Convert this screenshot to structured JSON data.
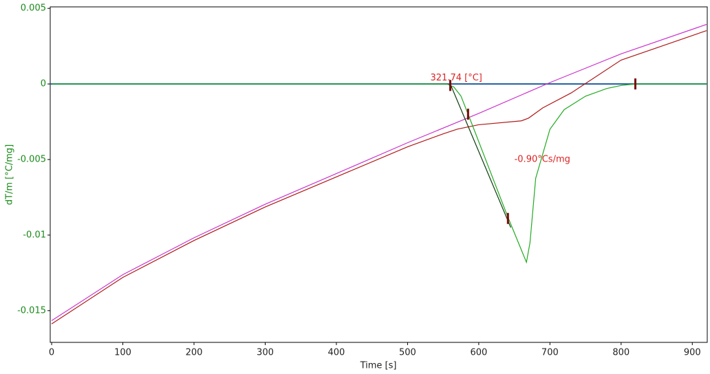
{
  "chart_data": {
    "type": "line",
    "xlabel": "Time [s]",
    "ylabel": "dT/m  [°C/mg]",
    "xlim": [
      -2,
      921
    ],
    "ylim": [
      -0.0171,
      0.0051
    ],
    "xticks": [
      0,
      100,
      200,
      300,
      400,
      500,
      600,
      700,
      800,
      900
    ],
    "yticks": [
      0.005,
      0,
      -0.005,
      -0.01,
      -0.015
    ],
    "series": [
      {
        "color": "#1f5fa0",
        "x": [
          -2,
          921
        ],
        "values": [
          0,
          0
        ]
      },
      {
        "color": "#cc33cc",
        "x": [
          0,
          100,
          200,
          300,
          400,
          500,
          600,
          700,
          800,
          920
        ],
        "values": [
          -0.01566,
          -0.01262,
          -0.01018,
          -0.00796,
          -0.00593,
          -0.00389,
          -0.00195,
          9e-05,
          0.00199,
          0.00394
        ]
      },
      {
        "color": "#b01818",
        "x": [
          0,
          100,
          200,
          300,
          400,
          500,
          550,
          570,
          600,
          660,
          670,
          690,
          730,
          800,
          920
        ],
        "values": [
          -0.01588,
          -0.0128,
          -0.01036,
          -0.00814,
          -0.00615,
          -0.00416,
          -0.0033,
          -0.00299,
          -0.0027,
          -0.00244,
          -0.00226,
          -0.00158,
          -0.00059,
          0.00158,
          0.00353
        ]
      },
      {
        "color": "#22aa22",
        "x": [
          0,
          555,
          565,
          575,
          590,
          640,
          660,
          667,
          672,
          680,
          700,
          720,
          750,
          780,
          800,
          820,
          921
        ],
        "values": [
          0,
          0,
          -0.0002,
          -0.0008,
          -0.0026,
          -0.0087,
          -0.011,
          -0.0118,
          -0.0105,
          -0.00624,
          -0.003,
          -0.0017,
          -0.00081,
          -0.0003,
          -0.0001,
          0,
          0
        ]
      },
      {
        "color": "#0a3a0a",
        "x": [
          560,
          645
        ],
        "values": [
          0,
          -0.0095
        ]
      }
    ],
    "markers": {
      "color": "#7a0a0a",
      "x": [
        560,
        585,
        641,
        820
      ],
      "values": [
        -0.0001,
        -0.002,
        -0.0089,
        0
      ]
    },
    "annotations": [
      {
        "text": "321.74 [°C]",
        "x": 532,
        "y": 0.0004,
        "color": "#dd2222"
      },
      {
        "text": "-0.90°Cs/mg",
        "x": 650,
        "y": -0.005,
        "color": "#dd2222"
      }
    ]
  }
}
